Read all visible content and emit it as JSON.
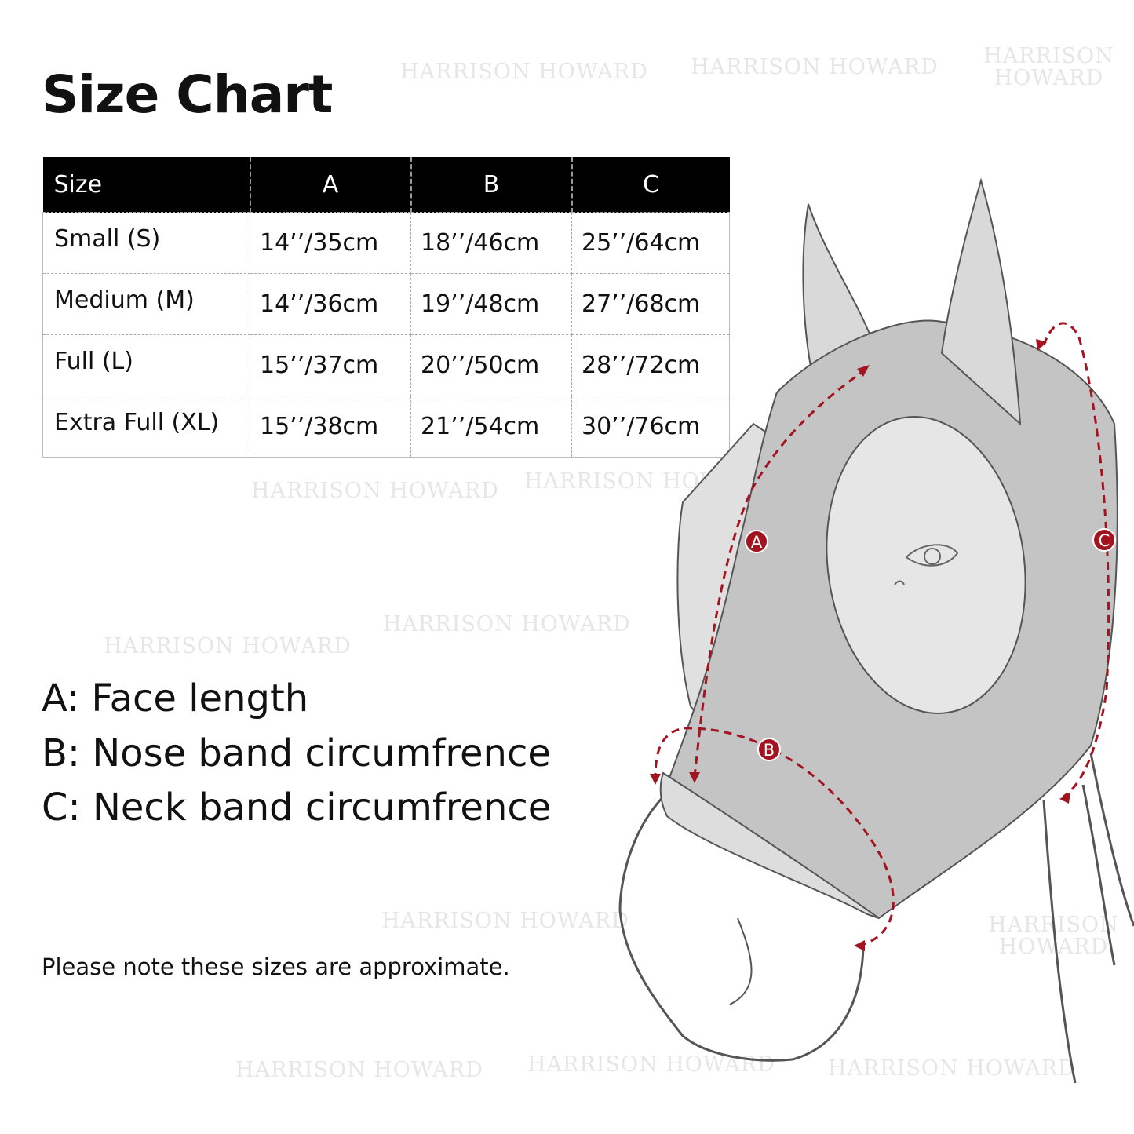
{
  "title": "Size Chart",
  "watermark": "HARRISON HOWARD",
  "table": {
    "headers": [
      "Size",
      "A",
      "B",
      "C"
    ],
    "rows": [
      [
        "Small (S)",
        "14’’/35cm",
        "18’’/46cm",
        "25’’/64cm"
      ],
      [
        "Medium (M)",
        "14’’/36cm",
        "19’’/48cm",
        "27’’/68cm"
      ],
      [
        "Full (L)",
        "15’’/37cm",
        "20’’/50cm",
        "28’’/72cm"
      ],
      [
        "Extra Full (XL)",
        "15’’/38cm",
        "21’’/54cm",
        "30’’/76cm"
      ]
    ]
  },
  "legend": [
    "A: Face length",
    "B: Nose band circumfrence",
    "C: Neck band circumfrence"
  ],
  "diagram": {
    "markers": [
      "A",
      "B",
      "C"
    ],
    "accent_color": "#a31420",
    "mask_color": "#c4c4c4"
  },
  "note": "Please note these sizes are approximate."
}
